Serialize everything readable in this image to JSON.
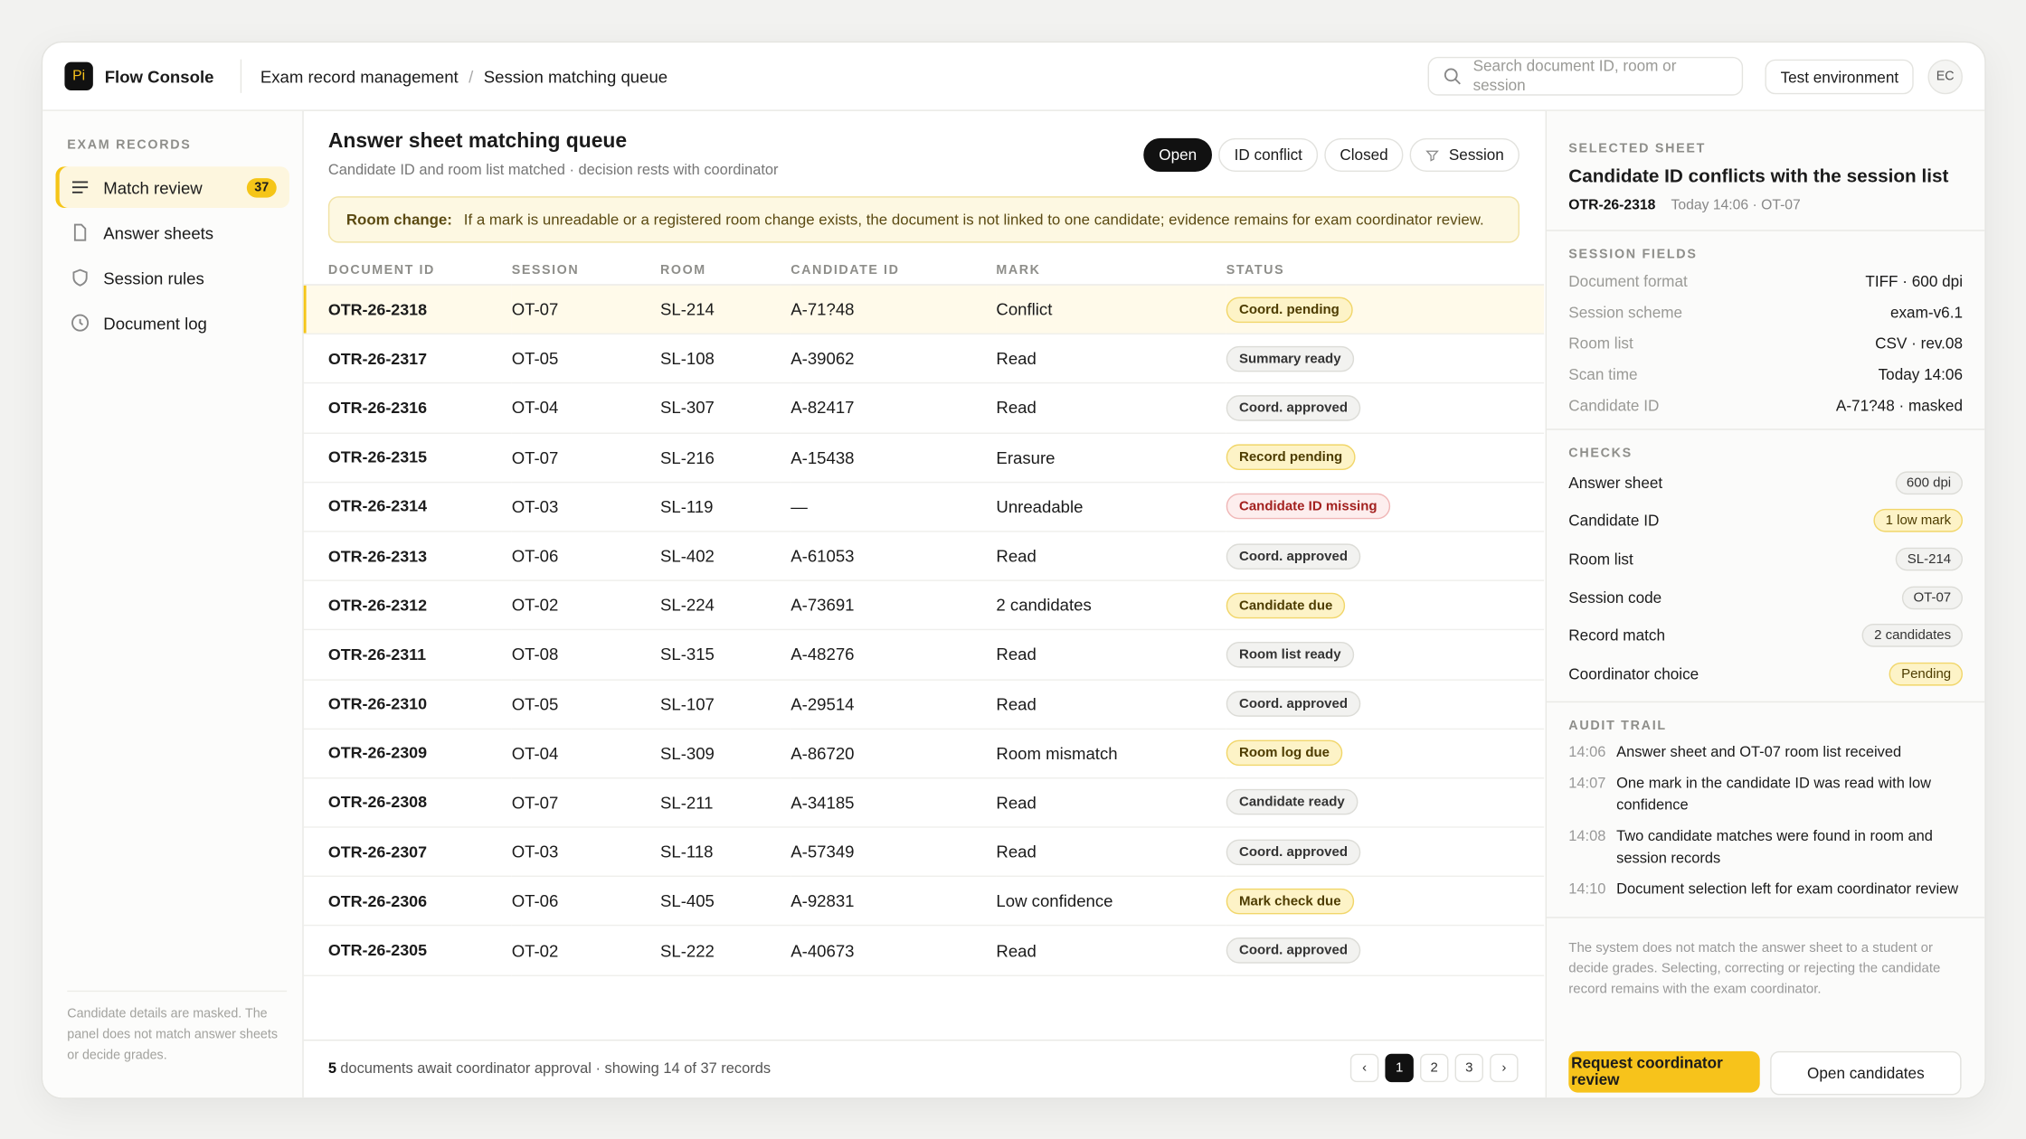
{
  "header": {
    "logo": "Pi",
    "brand": "Flow Console",
    "breadcrumb": [
      "Exam record management",
      "Session matching queue"
    ],
    "search_placeholder": "Search document ID, room or session",
    "environment": "Test environment",
    "avatar": "EC"
  },
  "sidebar": {
    "section": "EXAM RECORDS",
    "items": [
      {
        "label": "Match review",
        "badge": "37",
        "active": true,
        "icon": "list"
      },
      {
        "label": "Answer sheets",
        "icon": "doc"
      },
      {
        "label": "Session rules",
        "icon": "shield"
      },
      {
        "label": "Document log",
        "icon": "clock"
      }
    ],
    "note": "Candidate details are masked. The panel does not match answer sheets or decide grades."
  },
  "main": {
    "title": "Answer sheet matching queue",
    "subtitle": "Candidate ID and room list matched · decision rests with coordinator",
    "filters": [
      {
        "label": "Open",
        "active": true
      },
      {
        "label": "ID conflict"
      },
      {
        "label": "Closed"
      },
      {
        "label": "Session",
        "icon": "filter"
      }
    ],
    "notice": {
      "label": "Room change:",
      "text": "If a mark is unreadable or a registered room change exists, the document is not linked to one candidate; evidence remains for exam coordinator review."
    },
    "table": {
      "columns": [
        "DOCUMENT ID",
        "SESSION",
        "ROOM",
        "CANDIDATE ID",
        "MARK",
        "STATUS"
      ],
      "rows": [
        {
          "cells": [
            "OTR-26-2318",
            "OT-07",
            "SL-214",
            "A-71?48",
            "Conflict",
            "Coord. pending"
          ],
          "tone": "warn",
          "selected": true
        },
        {
          "cells": [
            "OTR-26-2317",
            "OT-05",
            "SL-108",
            "A-39062",
            "Read",
            "Summary ready"
          ],
          "tone": "neutral"
        },
        {
          "cells": [
            "OTR-26-2316",
            "OT-04",
            "SL-307",
            "A-82417",
            "Read",
            "Coord. approved"
          ],
          "tone": "neutral"
        },
        {
          "cells": [
            "OTR-26-2315",
            "OT-07",
            "SL-216",
            "A-15438",
            "Erasure",
            "Record pending"
          ],
          "tone": "warn"
        },
        {
          "cells": [
            "OTR-26-2314",
            "OT-03",
            "SL-119",
            "—",
            "Unreadable",
            "Candidate ID missing"
          ],
          "tone": "danger"
        },
        {
          "cells": [
            "OTR-26-2313",
            "OT-06",
            "SL-402",
            "A-61053",
            "Read",
            "Coord. approved"
          ],
          "tone": "neutral"
        },
        {
          "cells": [
            "OTR-26-2312",
            "OT-02",
            "SL-224",
            "A-73691",
            "2 candidates",
            "Candidate due"
          ],
          "tone": "warn"
        },
        {
          "cells": [
            "OTR-26-2311",
            "OT-08",
            "SL-315",
            "A-48276",
            "Read",
            "Room list ready"
          ],
          "tone": "neutral"
        },
        {
          "cells": [
            "OTR-26-2310",
            "OT-05",
            "SL-107",
            "A-29514",
            "Read",
            "Coord. approved"
          ],
          "tone": "neutral"
        },
        {
          "cells": [
            "OTR-26-2309",
            "OT-04",
            "SL-309",
            "A-86720",
            "Room mismatch",
            "Room log due"
          ],
          "tone": "warn"
        },
        {
          "cells": [
            "OTR-26-2308",
            "OT-07",
            "SL-211",
            "A-34185",
            "Read",
            "Candidate ready"
          ],
          "tone": "neutral"
        },
        {
          "cells": [
            "OTR-26-2307",
            "OT-03",
            "SL-118",
            "A-57349",
            "Read",
            "Coord. approved"
          ],
          "tone": "neutral"
        },
        {
          "cells": [
            "OTR-26-2306",
            "OT-06",
            "SL-405",
            "A-92831",
            "Low confidence",
            "Mark check due"
          ],
          "tone": "warn"
        },
        {
          "cells": [
            "OTR-26-2305",
            "OT-02",
            "SL-222",
            "A-40673",
            "Read",
            "Coord. approved"
          ],
          "tone": "neutral"
        }
      ]
    },
    "footer": {
      "count": "5",
      "text": "documents await coordinator approval · showing 14 of 37 records",
      "pages": [
        "1",
        "2",
        "3"
      ],
      "current": 0
    }
  },
  "panel": {
    "section": "SELECTED SHEET",
    "title": "Candidate ID conflicts with the session list",
    "doc_id": "OTR-26-2318",
    "meta": "Today 14:06 · OT-07",
    "fields_title": "SESSION FIELDS",
    "fields": [
      [
        "Document format",
        "TIFF · 600 dpi"
      ],
      [
        "Session scheme",
        "exam-v6.1"
      ],
      [
        "Room list",
        "CSV · rev.08"
      ],
      [
        "Scan time",
        "Today 14:06"
      ],
      [
        "Candidate ID",
        "A-71?48 · masked"
      ]
    ],
    "checks_title": "CHECKS",
    "checks": [
      {
        "label": "Answer sheet",
        "value": "600 dpi",
        "tone": "neutral"
      },
      {
        "label": "Candidate ID",
        "value": "1 low mark",
        "tone": "warn"
      },
      {
        "label": "Room list",
        "value": "SL-214",
        "tone": "neutral"
      },
      {
        "label": "Session code",
        "value": "OT-07",
        "tone": "neutral"
      },
      {
        "label": "Record match",
        "value": "2 candidates",
        "tone": "neutral"
      },
      {
        "label": "Coordinator choice",
        "value": "Pending",
        "tone": "warn"
      }
    ],
    "audit_title": "AUDIT TRAIL",
    "audit": [
      [
        "14:06",
        "Answer sheet and OT-07 room list received"
      ],
      [
        "14:07",
        "One mark in the candidate ID was read with low confidence"
      ],
      [
        "14:08",
        "Two candidate matches were found in room and session records"
      ],
      [
        "14:10",
        "Document selection left for exam coordinator review"
      ]
    ],
    "disclaimer": "The system does not match the answer sheet to a student or decide grades. Selecting, correcting or rejecting the candidate record remains with the exam coordinator.",
    "primary_button": "Request coordinator review",
    "secondary_button": "Open candidates"
  }
}
